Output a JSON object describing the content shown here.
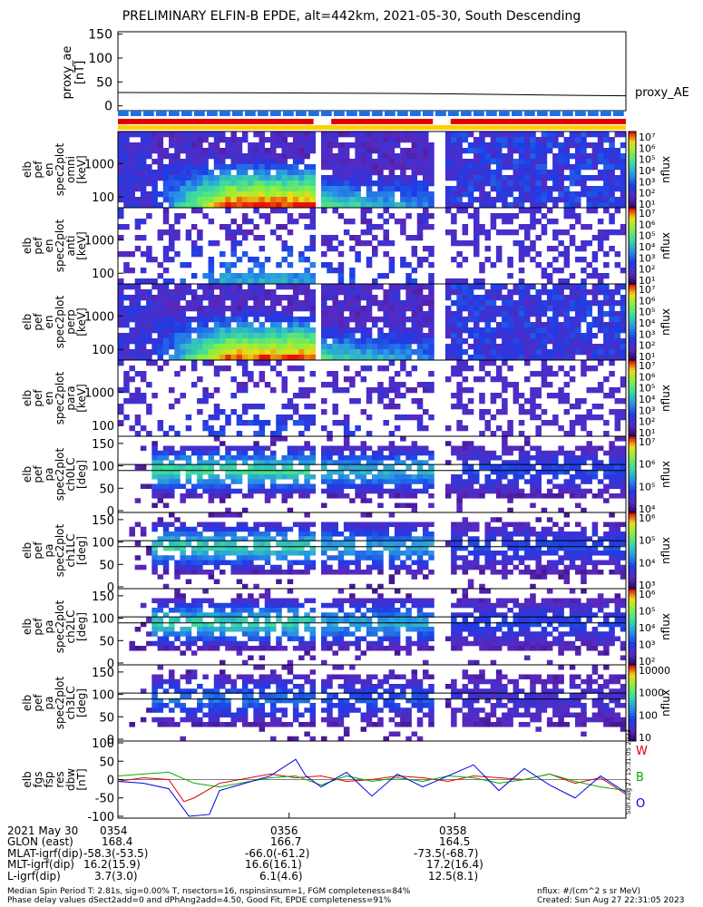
{
  "title": "PRELIMINARY ELFIN-B EPDE, alt=442km, 2021-05-30, South Descending",
  "ae_panel": {
    "ylabel_lines": [
      "proxy_ae",
      "[nT]"
    ],
    "yticks": [
      "150",
      "100",
      "50",
      "0"
    ],
    "series_label": "proxy_AE",
    "ylim": [
      -10,
      155
    ],
    "series": [
      [
        0,
        28
      ],
      [
        0.35,
        27
      ],
      [
        0.55,
        26
      ],
      [
        0.75,
        24
      ],
      [
        0.9,
        22
      ],
      [
        1.0,
        21
      ]
    ]
  },
  "bars": {
    "blue_color": "#1e6fe0",
    "red_color": "#e00000",
    "yellow_color": "#ffd000"
  },
  "spec_panels": [
    {
      "label_lines": [
        "elb",
        "pef",
        "en",
        "spec2plot",
        "omni",
        "[keV]"
      ],
      "yticks": [
        "1000",
        "100"
      ],
      "cbar_label": "nflux",
      "cbar_ticks": [
        "10⁷",
        "10⁶",
        "10⁵",
        "10⁴",
        "10³",
        "10²",
        "10¹"
      ],
      "kind": "energy",
      "intensity": 0.95
    },
    {
      "label_lines": [
        "elb",
        "pef",
        "en",
        "spec2plot",
        "anti",
        "[keV]"
      ],
      "yticks": [
        "1000",
        "100"
      ],
      "cbar_label": "nflux",
      "cbar_ticks": [
        "10⁷",
        "10⁶",
        "10⁵",
        "10⁴",
        "10³",
        "10²",
        "10¹"
      ],
      "kind": "energy",
      "intensity": 0.35
    },
    {
      "label_lines": [
        "elb",
        "pef",
        "en",
        "spec2plot",
        "perp",
        "[keV]"
      ],
      "yticks": [
        "1000",
        "100"
      ],
      "cbar_label": "nflux",
      "cbar_ticks": [
        "10⁷",
        "10⁶",
        "10⁵",
        "10⁴",
        "10³",
        "10²",
        "10¹"
      ],
      "kind": "energy",
      "intensity": 0.9
    },
    {
      "label_lines": [
        "elb",
        "pef",
        "en",
        "spec2plot",
        "para",
        "[keV]"
      ],
      "yticks": [
        "1000",
        "100"
      ],
      "cbar_label": "nflux",
      "cbar_ticks": [
        "10⁷",
        "10⁶",
        "10⁵",
        "10⁴",
        "10³",
        "10²",
        "10¹"
      ],
      "kind": "energy",
      "intensity": 0.15
    },
    {
      "label_lines": [
        "elb",
        "pef",
        "pa",
        "spec2plot",
        "ch0LC",
        "[deg]"
      ],
      "yticks": [
        "150",
        "100",
        "50",
        "0"
      ],
      "cbar_label": "nflux",
      "cbar_ticks": [
        "10⁷",
        "10⁶",
        "10⁵",
        "10⁴"
      ],
      "kind": "pa",
      "intensity": 0.75
    },
    {
      "label_lines": [
        "elb",
        "pef",
        "pa",
        "spec2plot",
        "ch1LC",
        "[deg]"
      ],
      "yticks": [
        "150",
        "100",
        "50",
        "0"
      ],
      "cbar_label": "nflux",
      "cbar_ticks": [
        "10⁶",
        "10⁵",
        "10⁴",
        "10³"
      ],
      "kind": "pa",
      "intensity": 0.7
    },
    {
      "label_lines": [
        "elb",
        "pef",
        "pa",
        "spec2plot",
        "ch2LC",
        "[deg]"
      ],
      "yticks": [
        "150",
        "100",
        "50",
        "0"
      ],
      "cbar_label": "nflux",
      "cbar_ticks": [
        "10⁶",
        "10⁵",
        "10⁴",
        "10³",
        "10²"
      ],
      "kind": "pa",
      "intensity": 0.7
    },
    {
      "label_lines": [
        "elb",
        "pef",
        "pa",
        "spec2plot",
        "ch3LC",
        "[deg]"
      ],
      "yticks": [
        "150",
        "100",
        "50",
        "0"
      ],
      "cbar_label": "nflux",
      "cbar_ticks": [
        "10000",
        "1000",
        "100",
        "10"
      ],
      "kind": "pa",
      "intensity": 0.4
    }
  ],
  "mag_panel": {
    "label_lines": [
      "elb",
      "fgs",
      "fsp",
      "res",
      "dbw",
      "[nT]"
    ],
    "yticks": [
      "100",
      "50",
      "0",
      "-50",
      "-100"
    ],
    "ylim": [
      -105,
      105
    ],
    "legend": [
      {
        "label": "W",
        "color": "#e00000"
      },
      {
        "label": "B",
        "color": "#00b000"
      },
      {
        "label": "O",
        "color": "#0000e0"
      }
    ],
    "side_text": "Sun Aug 27 15:31:05 2023"
  },
  "chart_data": {
    "type": "line",
    "title": "PRELIMINARY ELFIN-B EPDE, alt=442km, 2021-05-30, South Descending",
    "xlabel": "",
    "x_ticks": [
      "0354",
      "0356",
      "0358"
    ],
    "panels": [
      {
        "name": "proxy_ae",
        "ylabel": "proxy_ae [nT]",
        "ylim": [
          0,
          150
        ],
        "series": [
          {
            "name": "proxy_AE",
            "x_frac": [
              0,
              0.35,
              0.55,
              0.75,
              0.9,
              1.0
            ],
            "values": [
              28,
              27,
              26,
              24,
              22,
              21
            ]
          }
        ]
      },
      {
        "name": "elb_fgs_fsp_res_dbw",
        "ylabel": "elb fgs fsp res dbw [nT]",
        "ylim": [
          -100,
          100
        ],
        "series": [
          {
            "name": "W",
            "color": "#e00000",
            "x_frac": [
              0,
              0.05,
              0.1,
              0.13,
              0.15,
              0.2,
              0.3,
              0.35,
              0.4,
              0.45,
              0.5,
              0.55,
              0.6,
              0.65,
              0.7,
              0.75,
              0.8,
              0.85,
              0.9,
              0.95,
              1.0
            ],
            "values": [
              -5,
              5,
              0,
              -60,
              -50,
              -10,
              15,
              5,
              10,
              -5,
              0,
              10,
              5,
              -5,
              10,
              5,
              0,
              15,
              -10,
              5,
              -40
            ]
          },
          {
            "name": "B",
            "color": "#00b000",
            "x_frac": [
              0,
              0.05,
              0.1,
              0.15,
              0.2,
              0.3,
              0.35,
              0.4,
              0.45,
              0.5,
              0.55,
              0.6,
              0.65,
              0.7,
              0.75,
              0.8,
              0.85,
              0.9,
              0.95,
              1.0
            ],
            "values": [
              10,
              15,
              20,
              -10,
              -20,
              5,
              10,
              -15,
              10,
              -5,
              5,
              -5,
              10,
              5,
              -10,
              0,
              15,
              -5,
              -20,
              -30
            ]
          },
          {
            "name": "O",
            "color": "#0000e0",
            "x_frac": [
              0,
              0.05,
              0.1,
              0.14,
              0.18,
              0.2,
              0.3,
              0.35,
              0.37,
              0.4,
              0.45,
              0.5,
              0.55,
              0.6,
              0.65,
              0.7,
              0.75,
              0.8,
              0.85,
              0.9,
              0.95,
              1.0
            ],
            "values": [
              -5,
              -10,
              -25,
              -100,
              -95,
              -30,
              10,
              55,
              10,
              -20,
              20,
              -45,
              15,
              -20,
              10,
              40,
              -30,
              30,
              -15,
              -50,
              10,
              -35
            ]
          }
        ]
      }
    ]
  },
  "footer_left": {
    "rows": [
      {
        "label": "2021 May 30",
        "v1": "0354",
        "v2": "0356",
        "v3": "0358"
      },
      {
        "label": "GLON (east)",
        "v1": "168.4",
        "v2": "166.7",
        "v3": "164.5"
      },
      {
        "label": "MLAT-igrf(dip)",
        "v1": "-58.3(-53.5)",
        "v2": "-66.0(-61.2)",
        "v3": "-73.5(-68.7)"
      },
      {
        "label": "MLT-igrf(dip)",
        "v1": "16.2(15.9)",
        "v2": "16.6(16.1)",
        "v3": "17.2(16.4)"
      },
      {
        "label": "L-igrf(dip)",
        "v1": "3.7(3.0)",
        "v2": "6.1(4.6)",
        "v3": "12.5(8.1)"
      }
    ]
  },
  "footnotes": {
    "line1": "Median Spin Period T: 2.81s, sig=0.00% T, nsectors=16, nspinsinsum=1, FGM completeness=84%",
    "line2": "Phase delay values dSect2add=0 and dPhAng2add=4.50, Good Fit, EPDE completeness=91%",
    "right1": "nflux: #/(cm^2 s sr MeV)",
    "right2": "Created: Sun Aug 27 22:31:05 2023"
  }
}
